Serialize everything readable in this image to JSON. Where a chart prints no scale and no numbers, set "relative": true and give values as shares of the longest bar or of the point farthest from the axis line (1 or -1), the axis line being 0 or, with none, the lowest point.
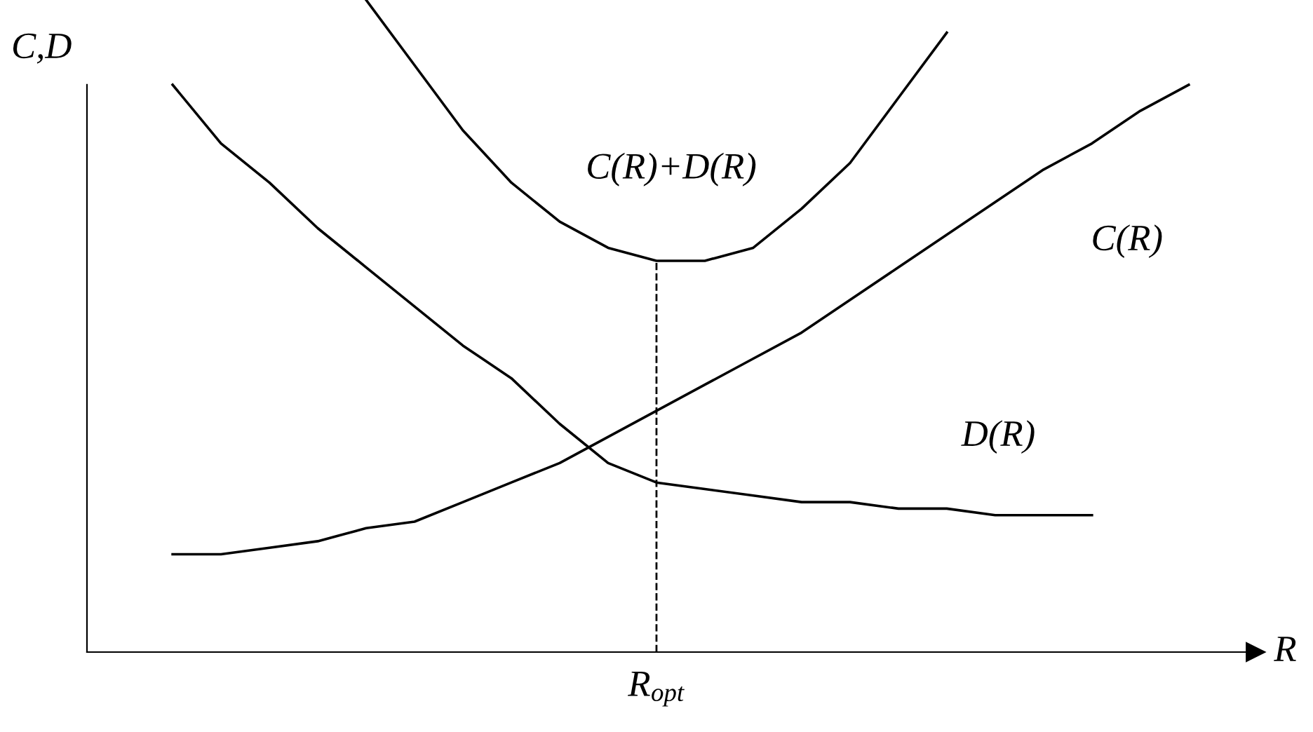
{
  "chart_data": {
    "type": "line",
    "relative": true,
    "xlabel": "R",
    "ylabel": "C,D",
    "categories": [
      null,
      null,
      null,
      null,
      null,
      null,
      null,
      null,
      null,
      null,
      null,
      null,
      null,
      null,
      null,
      null,
      null,
      null,
      null,
      null,
      null,
      null
    ],
    "series": [
      {
        "name": "C(R)+D(R)",
        "color": "#000000",
        "values": [
          null,
          null,
          null,
          null,
          1.0,
          0.9,
          0.8,
          0.72,
          0.66,
          0.62,
          0.6,
          0.6,
          0.62,
          0.68,
          0.75,
          0.85,
          0.95,
          null,
          null,
          null,
          null,
          null
        ]
      },
      {
        "name": "C(R)",
        "color": "#000000",
        "values": [
          0.15,
          0.15,
          0.16,
          0.17,
          0.19,
          0.2,
          0.23,
          0.26,
          0.29,
          0.33,
          0.37,
          0.41,
          0.45,
          0.49,
          0.54,
          0.59,
          0.64,
          0.69,
          0.74,
          0.78,
          0.83,
          0.87
        ]
      },
      {
        "name": "D(R)",
        "color": "#000000",
        "values": [
          0.87,
          0.78,
          0.72,
          0.65,
          0.59,
          0.53,
          0.47,
          0.42,
          0.35,
          0.29,
          0.26,
          0.25,
          0.24,
          0.23,
          0.23,
          0.22,
          0.22,
          0.21,
          0.21,
          0.21,
          null,
          null
        ]
      }
    ],
    "annotations": [
      "R$_{opt}$"
    ]
  }
}
